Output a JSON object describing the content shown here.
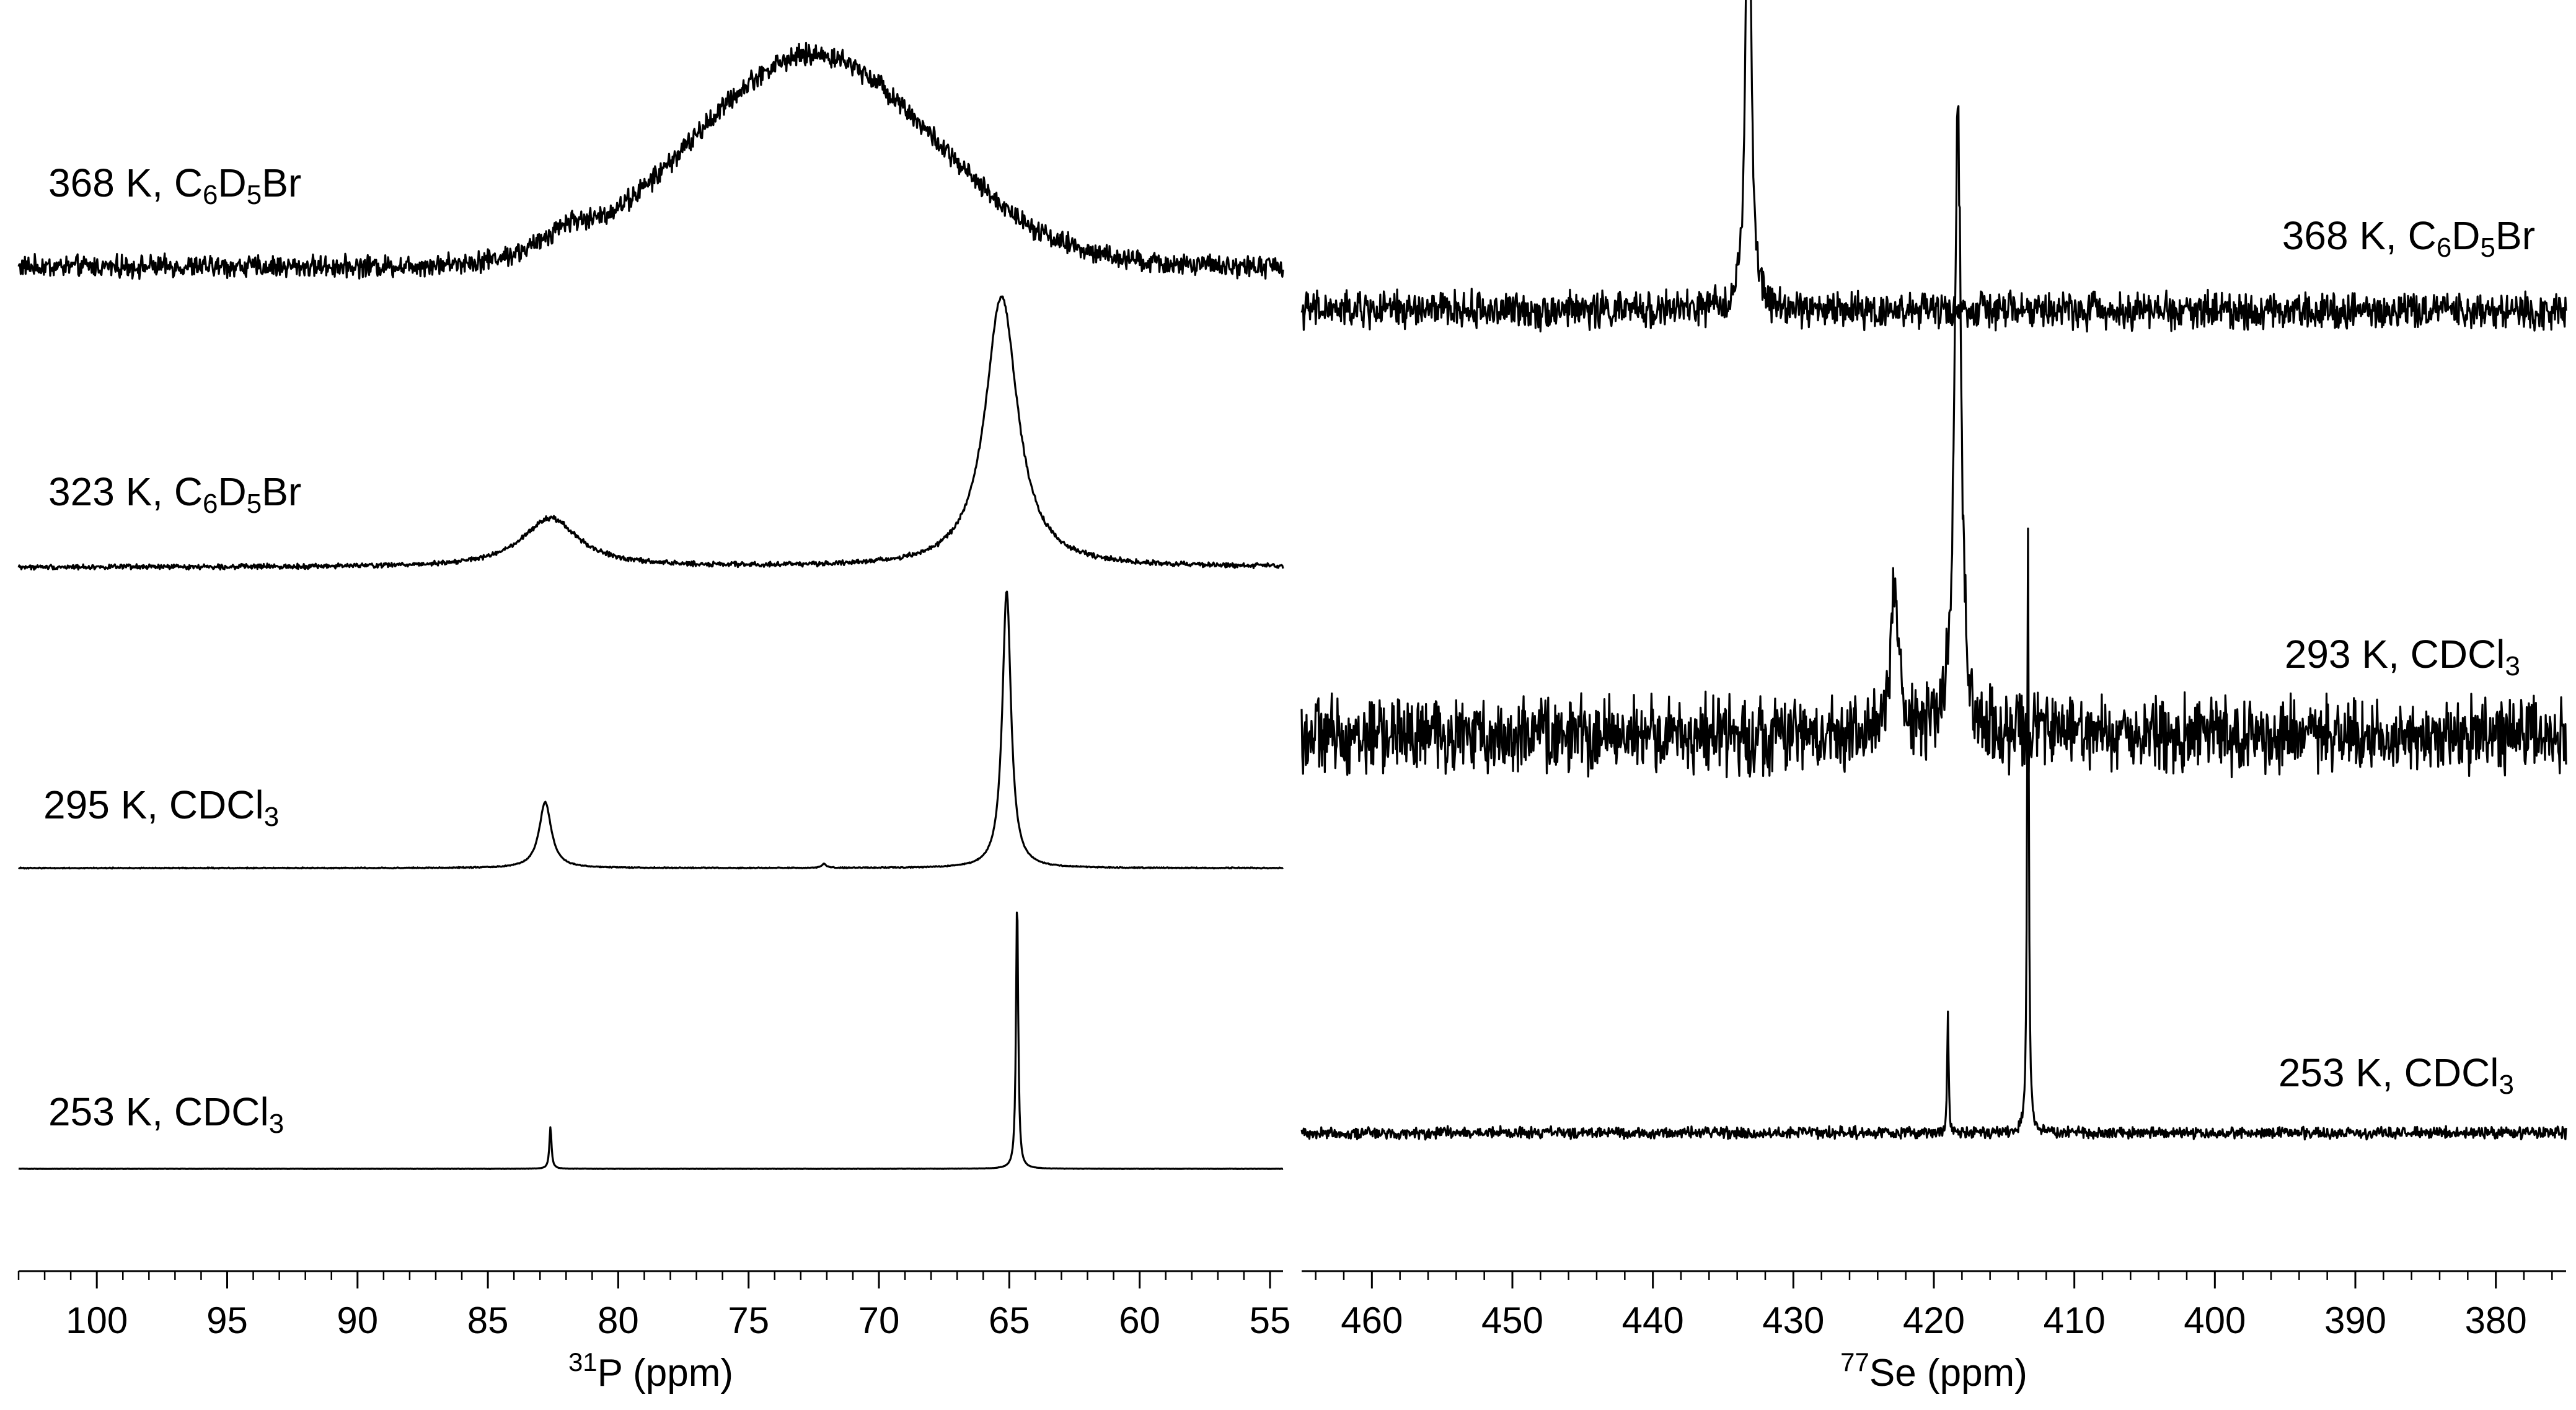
{
  "chart_data": [
    {
      "type": "line",
      "nucleus": "31P",
      "xlabel_sup": "31",
      "xlabel_main": "P (ppm)",
      "xlim": [
        103,
        54.5
      ],
      "xticks": [
        100,
        95,
        90,
        85,
        80,
        75,
        70,
        65,
        60,
        55
      ],
      "grid": false,
      "series": [
        {
          "name": "368 K, C6D5Br",
          "label": {
            "main": "368 K, C",
            "s1": "6",
            "m2": "D",
            "s2": "5",
            "tail": "Br"
          },
          "baseline_noise": 0.22,
          "peaks": [
            {
              "x": 72.5,
              "height": 3.05,
              "width": 4.6,
              "shape": "gaussian"
            },
            {
              "x": 82.0,
              "height": 0.28,
              "width": 1.0,
              "shape": "lorentzian"
            }
          ]
        },
        {
          "name": "323 K, C6D5Br",
          "label": {
            "main": "323 K, C",
            "s1": "6",
            "m2": "D",
            "s2": "5",
            "tail": "Br"
          },
          "baseline_noise": 0.05,
          "peaks": [
            {
              "x": 65.3,
              "height": 3.9,
              "width": 0.75,
              "shape": "lorentzian"
            },
            {
              "x": 82.6,
              "height": 0.7,
              "width": 1.3,
              "shape": "lorentzian"
            }
          ]
        },
        {
          "name": "295 K, CDCl3",
          "label": {
            "main": "295 K, CDCl",
            "s1": "3",
            "m2": "",
            "s2": "",
            "tail": ""
          },
          "baseline_noise": 0.01,
          "peaks": [
            {
              "x": 65.1,
              "height": 4.0,
              "width": 0.2,
              "shape": "lorentzian"
            },
            {
              "x": 82.8,
              "height": 0.95,
              "width": 0.28,
              "shape": "lorentzian"
            },
            {
              "x": 72.1,
              "height": 0.06,
              "width": 0.1,
              "shape": "lorentzian"
            }
          ]
        },
        {
          "name": "253 K, CDCl3",
          "label": {
            "main": "253 K, CDCl",
            "s1": "3",
            "m2": "",
            "s2": "",
            "tail": ""
          },
          "baseline_noise": 0.004,
          "peaks": [
            {
              "x": 64.7,
              "height": 3.9,
              "width": 0.05,
              "shape": "lorentzian"
            },
            {
              "x": 82.6,
              "height": 0.6,
              "width": 0.05,
              "shape": "lorentzian"
            }
          ]
        }
      ]
    },
    {
      "type": "line",
      "nucleus": "77Se",
      "xlabel_sup": "77",
      "xlabel_main": "Se (ppm)",
      "xlim": [
        465,
        375
      ],
      "xticks": [
        460,
        450,
        440,
        430,
        420,
        410,
        400,
        390,
        380
      ],
      "grid": false,
      "series": [
        {
          "name": "368 K, C6D5Br",
          "label": {
            "main": "368 K, C",
            "s1": "6",
            "m2": "D",
            "s2": "5",
            "tail": "Br"
          },
          "baseline_noise": 0.22,
          "peaks": [
            {
              "x": 433.2,
              "height": 4.3,
              "width": 0.22,
              "shape": "lorentzian"
            }
          ]
        },
        {
          "name": "293 K, CDCl3",
          "label": {
            "main": "293 K, CDCl",
            "s1": "3",
            "m2": "",
            "s2": "",
            "tail": ""
          },
          "baseline_noise": 0.45,
          "peaks": [
            {
              "x": 418.3,
              "height": 5.3,
              "width": 0.28,
              "shape": "lorentzian"
            },
            {
              "x": 422.8,
              "height": 1.15,
              "width": 0.35,
              "shape": "lorentzian"
            }
          ]
        },
        {
          "name": "253 K, CDCl3",
          "label": {
            "main": "253 K, CDCl",
            "s1": "3",
            "m2": "",
            "s2": "",
            "tail": ""
          },
          "baseline_noise": 0.07,
          "peaks": [
            {
              "x": 413.3,
              "height": 5.1,
              "width": 0.07,
              "shape": "lorentzian"
            },
            {
              "x": 419.0,
              "height": 1.0,
              "width": 0.06,
              "shape": "lorentzian"
            }
          ]
        }
      ]
    }
  ]
}
